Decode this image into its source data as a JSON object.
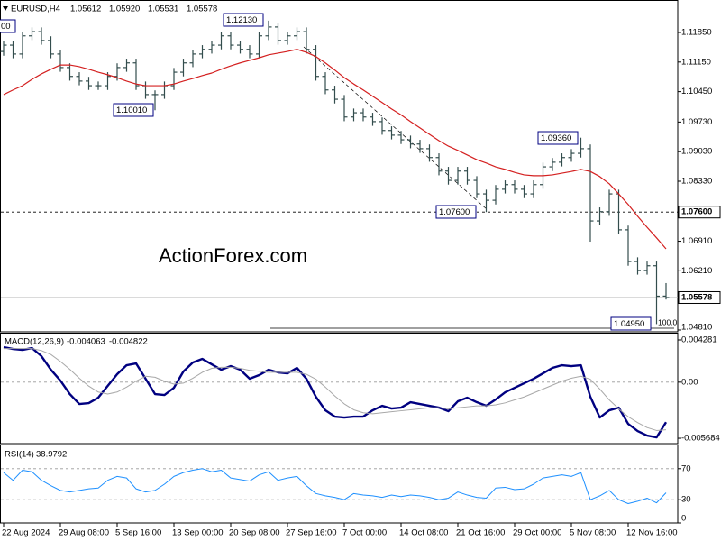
{
  "chart_data": [
    {
      "type": "ohlc",
      "title": "EURUSD,H4",
      "quote": [
        "1.05612",
        "1.05920",
        "1.05531",
        "1.05578"
      ],
      "watermark": "ActionForex.com",
      "color": "#334d4d",
      "categories": [
        "22 Aug 2024",
        null,
        null,
        null,
        null,
        null,
        "29 Aug 08:00",
        null,
        null,
        null,
        null,
        null,
        "5 Sep 16:00",
        null,
        null,
        null,
        null,
        null,
        "13 Sep 00:00",
        null,
        null,
        null,
        null,
        null,
        "20 Sep 08:00",
        null,
        null,
        null,
        null,
        null,
        "27 Sep 16:00",
        null,
        null,
        null,
        null,
        null,
        "7 Oct 00:00",
        null,
        null,
        null,
        null,
        null,
        "14 Oct 08:00",
        null,
        null,
        null,
        null,
        null,
        "21 Oct 16:00",
        null,
        null,
        null,
        null,
        null,
        "29 Oct 00:00",
        null,
        null,
        null,
        null,
        null,
        "5 Nov 08:00",
        null,
        null,
        null,
        null,
        null,
        "12 Nov 16:00",
        null,
        null,
        null,
        null
      ],
      "open": [
        1.114,
        1.1155,
        1.1134,
        1.1177,
        1.1187,
        1.1166,
        1.1134,
        1.1102,
        1.1081,
        1.107,
        1.1059,
        1.1059,
        1.1081,
        1.1102,
        1.1113,
        1.1059,
        1.1038,
        1.1038,
        1.1059,
        1.1091,
        1.1113,
        1.1134,
        1.1145,
        1.1155,
        1.1177,
        1.1155,
        1.1145,
        1.1134,
        1.1177,
        1.1198,
        1.1166,
        1.1177,
        1.1187,
        1.1145,
        1.1081,
        1.1049,
        1.1027,
        1.0985,
        1.0995,
        1.0985,
        1.0974,
        1.0953,
        1.0942,
        1.0931,
        1.0921,
        1.091,
        1.0889,
        1.0857,
        1.0835,
        1.0857,
        1.0835,
        1.0803,
        1.0788,
        1.0814,
        1.0825,
        1.0814,
        1.0803,
        1.0825,
        1.0867,
        1.0878,
        1.0889,
        1.0899,
        1.091,
        1.0739,
        1.0761,
        1.0803,
        1.0718,
        1.0643,
        1.0622,
        1.0633,
        1.05612
      ],
      "high": [
        1.1165,
        1.1165,
        1.1187,
        1.1197,
        1.1197,
        1.1176,
        1.1144,
        1.1112,
        1.1091,
        1.108,
        1.1069,
        1.1091,
        1.1112,
        1.1123,
        1.1123,
        1.1069,
        1.1048,
        1.1069,
        1.1101,
        1.1123,
        1.1144,
        1.1155,
        1.1165,
        1.1187,
        1.1187,
        1.1165,
        1.1155,
        1.1187,
        1.1213,
        1.1208,
        1.1187,
        1.1197,
        1.1197,
        1.1155,
        1.1091,
        1.1059,
        1.1037,
        1.1005,
        1.1005,
        1.0995,
        1.0984,
        1.0963,
        1.0952,
        1.0941,
        1.0931,
        1.092,
        1.0899,
        1.0867,
        1.0867,
        1.0867,
        1.0845,
        1.0813,
        1.0824,
        1.0835,
        1.0835,
        1.0824,
        1.0835,
        1.0877,
        1.0888,
        1.0899,
        1.0909,
        1.0936,
        1.092,
        1.0771,
        1.0813,
        1.0813,
        1.0728,
        1.0653,
        1.0643,
        1.0643,
        1.0592
      ],
      "low": [
        1.113,
        1.1124,
        1.1124,
        1.1167,
        1.1156,
        1.1124,
        1.1092,
        1.1071,
        1.106,
        1.1049,
        1.1049,
        1.1049,
        1.1071,
        1.1092,
        1.1049,
        1.1028,
        1.1001,
        1.1028,
        1.1049,
        1.1081,
        1.1103,
        1.1124,
        1.1135,
        1.1145,
        1.1145,
        1.1135,
        1.1124,
        1.1124,
        1.1167,
        1.1156,
        1.1156,
        1.1167,
        1.1135,
        1.1071,
        1.1039,
        1.1017,
        1.0975,
        1.0975,
        1.0975,
        1.0964,
        1.0943,
        1.0932,
        1.0921,
        1.0911,
        1.09,
        1.0879,
        1.0847,
        1.0825,
        1.0825,
        1.0825,
        1.0793,
        1.076,
        1.0778,
        1.0804,
        1.0804,
        1.0793,
        1.0793,
        1.0815,
        1.0857,
        1.0868,
        1.0879,
        1.0889,
        1.069,
        1.0729,
        1.0751,
        1.0708,
        1.0633,
        1.0612,
        1.0612,
        1.0495,
        1.05531
      ],
      "close": [
        1.1155,
        1.1134,
        1.1177,
        1.1187,
        1.1166,
        1.1134,
        1.1102,
        1.1081,
        1.107,
        1.1059,
        1.1059,
        1.1081,
        1.1102,
        1.1113,
        1.1059,
        1.1038,
        1.1038,
        1.1059,
        1.1091,
        1.1113,
        1.1134,
        1.1145,
        1.1155,
        1.1177,
        1.1155,
        1.1145,
        1.1134,
        1.1177,
        1.1198,
        1.1166,
        1.1177,
        1.1187,
        1.1145,
        1.1081,
        1.1049,
        1.1027,
        1.0985,
        1.0995,
        1.0985,
        1.0974,
        1.0953,
        1.0942,
        1.0931,
        1.0921,
        1.091,
        1.0889,
        1.0857,
        1.0835,
        1.0857,
        1.0835,
        1.0803,
        1.0788,
        1.0814,
        1.0825,
        1.0814,
        1.0803,
        1.0825,
        1.0867,
        1.0878,
        1.0889,
        1.0899,
        1.091,
        1.0739,
        1.0761,
        1.0803,
        1.0718,
        1.0643,
        1.0622,
        1.0633,
        1.0561,
        1.05578
      ],
      "ma": {
        "color": "#d42020",
        "values": [
          1.1038,
          1.1049,
          1.1059,
          1.1074,
          1.1087,
          1.1098,
          1.1108,
          1.1108,
          1.1104,
          1.1098,
          1.1091,
          1.1085,
          1.1078,
          1.107,
          1.1063,
          1.1059,
          1.1059,
          1.1059,
          1.1063,
          1.107,
          1.1076,
          1.1083,
          1.1089,
          1.1098,
          1.1106,
          1.1113,
          1.1119,
          1.1125,
          1.1132,
          1.1136,
          1.114,
          1.1145,
          1.1138,
          1.1128,
          1.1113,
          1.1096,
          1.1078,
          1.1063,
          1.1049,
          1.1034,
          1.1019,
          1.1004,
          1.099,
          1.0974,
          1.0959,
          1.0944,
          1.0929,
          1.0916,
          1.0906,
          1.0895,
          1.0884,
          1.0876,
          1.0867,
          1.0861,
          1.0854,
          1.0848,
          1.0846,
          1.0846,
          1.0848,
          1.0852,
          1.0856,
          1.0861,
          1.0856,
          1.0844,
          1.0827,
          1.0803,
          1.0778,
          1.075,
          1.0724,
          1.0699,
          1.0673
        ]
      },
      "ylim": [
        1.04767,
        1.12618
      ],
      "yticks": [
        {
          "value": 1.1185,
          "label": "1.11850"
        },
        {
          "value": 1.1115,
          "label": "1.11150"
        },
        {
          "value": 1.1045,
          "label": "1.10450"
        },
        {
          "value": 1.0973,
          "label": "1.09730"
        },
        {
          "value": 1.0903,
          "label": "1.09030"
        },
        {
          "value": 1.0833,
          "label": "1.08330"
        },
        {
          "value": 1.0691,
          "label": "1.06910"
        },
        {
          "value": 1.0621,
          "label": "1.06210"
        },
        {
          "value": 1.0481,
          "label": "1.04810"
        }
      ],
      "hlines": [
        {
          "value": 1.076,
          "label": "1.07600",
          "style": "dashed",
          "color": "#000000"
        },
        {
          "value": 1.05578,
          "label": "1.05578",
          "style": "solid",
          "color": "#b4b4b4"
        }
      ],
      "annotations": [
        {
          "text": "00"
        },
        {
          "text": "1.12130"
        },
        {
          "text": "1.10010"
        },
        {
          "text": "1.07600"
        },
        {
          "text": "1.09360"
        },
        {
          "text": "1.04950"
        }
      ],
      "fib_label": "100.0"
    },
    {
      "type": "line",
      "title": "MACD(12,26,9)",
      "series": [
        {
          "color": "#000080",
          "width": 2.4,
          "values": [
            0.003547,
            0.003364,
            0.003273,
            0.003456,
            0.002633,
            0.001262,
            0.000165,
            -0.001207,
            -0.002212,
            -0.002121,
            -0.001573,
            -0.000384,
            0.000805,
            0.001719,
            0.001902,
            0.000347,
            -0.001207,
            -0.001298,
            -0.000567,
            0.001079,
            0.001993,
            0.002359,
            0.00181,
            0.001262,
            0.001627,
            0.001262,
            0.000347,
            0.000713,
            0.001262,
            0.000987,
            0.000896,
            0.001445,
            0.000347,
            -0.001481,
            -0.002852,
            -0.003492,
            -0.003584,
            -0.003492,
            -0.003492,
            -0.002852,
            -0.002395,
            -0.00267,
            -0.002578,
            -0.00203,
            -0.002212,
            -0.002395,
            -0.002578,
            -0.002944,
            -0.001938,
            -0.001573,
            -0.00203,
            -0.002395,
            -0.001755,
            -0.001024,
            -0.000567,
            -0.00011,
            0.000347,
            0.000896,
            0.001445,
            0.001719,
            0.001627,
            0.001719,
            -0.001481,
            -0.003584,
            -0.002852,
            -0.002578,
            -0.004224,
            -0.004955,
            -0.005412,
            -0.005595,
            -0.004063
          ]
        },
        {
          "color": "#a8a8a8",
          "width": 1,
          "values": [
            0.0034,
            0.0034,
            0.0034,
            0.0034,
            0.0032,
            0.0028,
            0.0021,
            0.0013,
            0.0004,
            -0.0004,
            -0.001,
            -0.0012,
            -0.001,
            -0.0005,
            0.0001,
            0.0006,
            0.0005,
            0.0001,
            -0.0002,
            -0.0001,
            0.0004,
            0.001,
            0.0014,
            0.0015,
            0.0015,
            0.0014,
            0.0012,
            0.0011,
            0.001,
            0.001,
            0.001,
            0.001,
            0.0008,
            0.0003,
            -0.0005,
            -0.0014,
            -0.0022,
            -0.0028,
            -0.0031,
            -0.0032,
            -0.0031,
            -0.003,
            -0.0029,
            -0.0028,
            -0.0027,
            -0.0026,
            -0.0026,
            -0.0027,
            -0.0026,
            -0.0025,
            -0.0024,
            -0.0024,
            -0.0023,
            -0.0021,
            -0.0018,
            -0.0015,
            -0.0011,
            -0.0007,
            -0.0003,
            0.0001,
            0.0004,
            0.0006,
            0.0003,
            -0.0007,
            -0.0018,
            -0.0027,
            -0.0035,
            -0.0041,
            -0.0046,
            -0.0049,
            -0.004822
          ]
        }
      ],
      "ylim": [
        -0.00623,
        0.00492
      ],
      "yticks": [
        0.004281,
        {
          "value": 0,
          "label": "0.00"
        },
        -0.005684
      ],
      "levels": [
        0
      ]
    },
    {
      "type": "line",
      "title": "RSI(14)",
      "series": [
        {
          "color": "#1e90ff",
          "width": 1,
          "values": [
            65,
            55,
            68,
            66,
            55,
            48,
            42,
            40,
            42,
            44,
            45,
            55,
            60,
            58,
            44,
            40,
            42,
            50,
            60,
            65,
            68,
            70,
            66,
            68,
            58,
            56,
            54,
            62,
            66,
            55,
            58,
            60,
            48,
            38,
            35,
            33,
            30,
            38,
            36,
            35,
            33,
            36,
            34,
            36,
            35,
            33,
            30,
            32,
            40,
            36,
            33,
            32,
            45,
            46,
            43,
            44,
            50,
            58,
            60,
            62,
            60,
            65,
            30,
            35,
            42,
            30,
            25,
            28,
            32,
            26,
            38.9792
          ]
        }
      ],
      "ylim": [
        0,
        100
      ],
      "yticks": [
        70,
        30,
        0
      ],
      "levels": [
        70,
        30
      ]
    }
  ]
}
